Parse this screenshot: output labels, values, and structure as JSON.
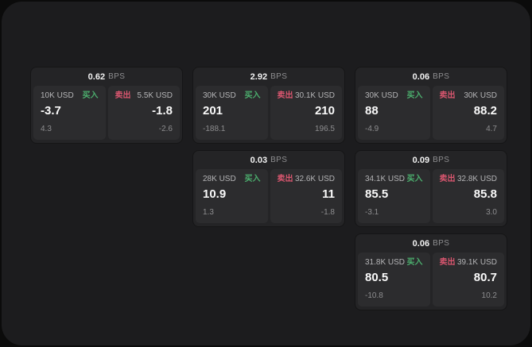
{
  "labels": {
    "bps_unit": "BPS",
    "buy": "买入",
    "sell": "卖出"
  },
  "colors": {
    "buy_accent": "#4caf6e",
    "sell_accent": "#d9566f",
    "screen_bg": "#1c1c1e",
    "card_bg": "#242426",
    "pane_bg": "#2c2c2e"
  },
  "cards": [
    {
      "bps": "0.62",
      "row": 1,
      "col": 1,
      "buy": {
        "amount": "10K USD",
        "value": "-3.7",
        "change": "4.3"
      },
      "sell": {
        "amount": "5.5K USD",
        "value": "-1.8",
        "change": "-2.6"
      }
    },
    {
      "bps": "2.92",
      "row": 1,
      "col": 2,
      "buy": {
        "amount": "30K USD",
        "value": "201",
        "change": "-188.1"
      },
      "sell": {
        "amount": "30.1K USD",
        "value": "210",
        "change": "196.5"
      }
    },
    {
      "bps": "0.06",
      "row": 1,
      "col": 3,
      "buy": {
        "amount": "30K USD",
        "value": "88",
        "change": "-4.9"
      },
      "sell": {
        "amount": "30K USD",
        "value": "88.2",
        "change": "4.7"
      }
    },
    {
      "bps": "0.03",
      "row": 2,
      "col": 2,
      "buy": {
        "amount": "28K USD",
        "value": "10.9",
        "change": "1.3"
      },
      "sell": {
        "amount": "32.6K USD",
        "value": "11",
        "change": "-1.8"
      }
    },
    {
      "bps": "0.09",
      "row": 2,
      "col": 3,
      "buy": {
        "amount": "34.1K USD",
        "value": "85.5",
        "change": "-3.1"
      },
      "sell": {
        "amount": "32.8K USD",
        "value": "85.8",
        "change": "3.0"
      }
    },
    {
      "bps": "0.06",
      "row": 3,
      "col": 3,
      "buy": {
        "amount": "31.8K USD",
        "value": "80.5",
        "change": "-10.8"
      },
      "sell": {
        "amount": "39.1K USD",
        "value": "80.7",
        "change": "10.2"
      }
    }
  ]
}
